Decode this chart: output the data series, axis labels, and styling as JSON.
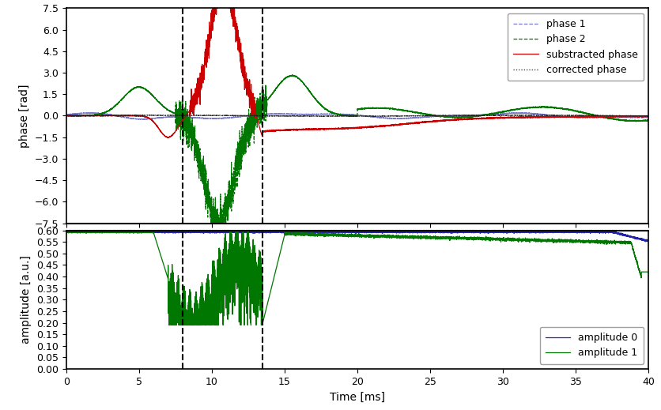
{
  "xlim": [
    0,
    40
  ],
  "xlabel": "Time [ms]",
  "phase_ylim": [
    -7.5,
    7.5
  ],
  "phase_ylabel": "phase [rad]",
  "amp_ylim": [
    0.0,
    0.6
  ],
  "amp_ylabel": "amplitude [a.u.]",
  "vline1": 8.0,
  "vline2": 13.5,
  "legend1_entries": [
    "phase 1",
    "phase 2",
    "substracted phase",
    "corrected phase"
  ],
  "legend2_entries": [
    "amplitude 0",
    "amplitude 1"
  ],
  "color_phase1": "#7777cc",
  "color_phase2": "#007700",
  "color_subtracted": "#cc0000",
  "color_corrected": "#222222",
  "color_amp0": "#2222aa",
  "color_amp1": "#007700",
  "bg_color": "#ffffff"
}
